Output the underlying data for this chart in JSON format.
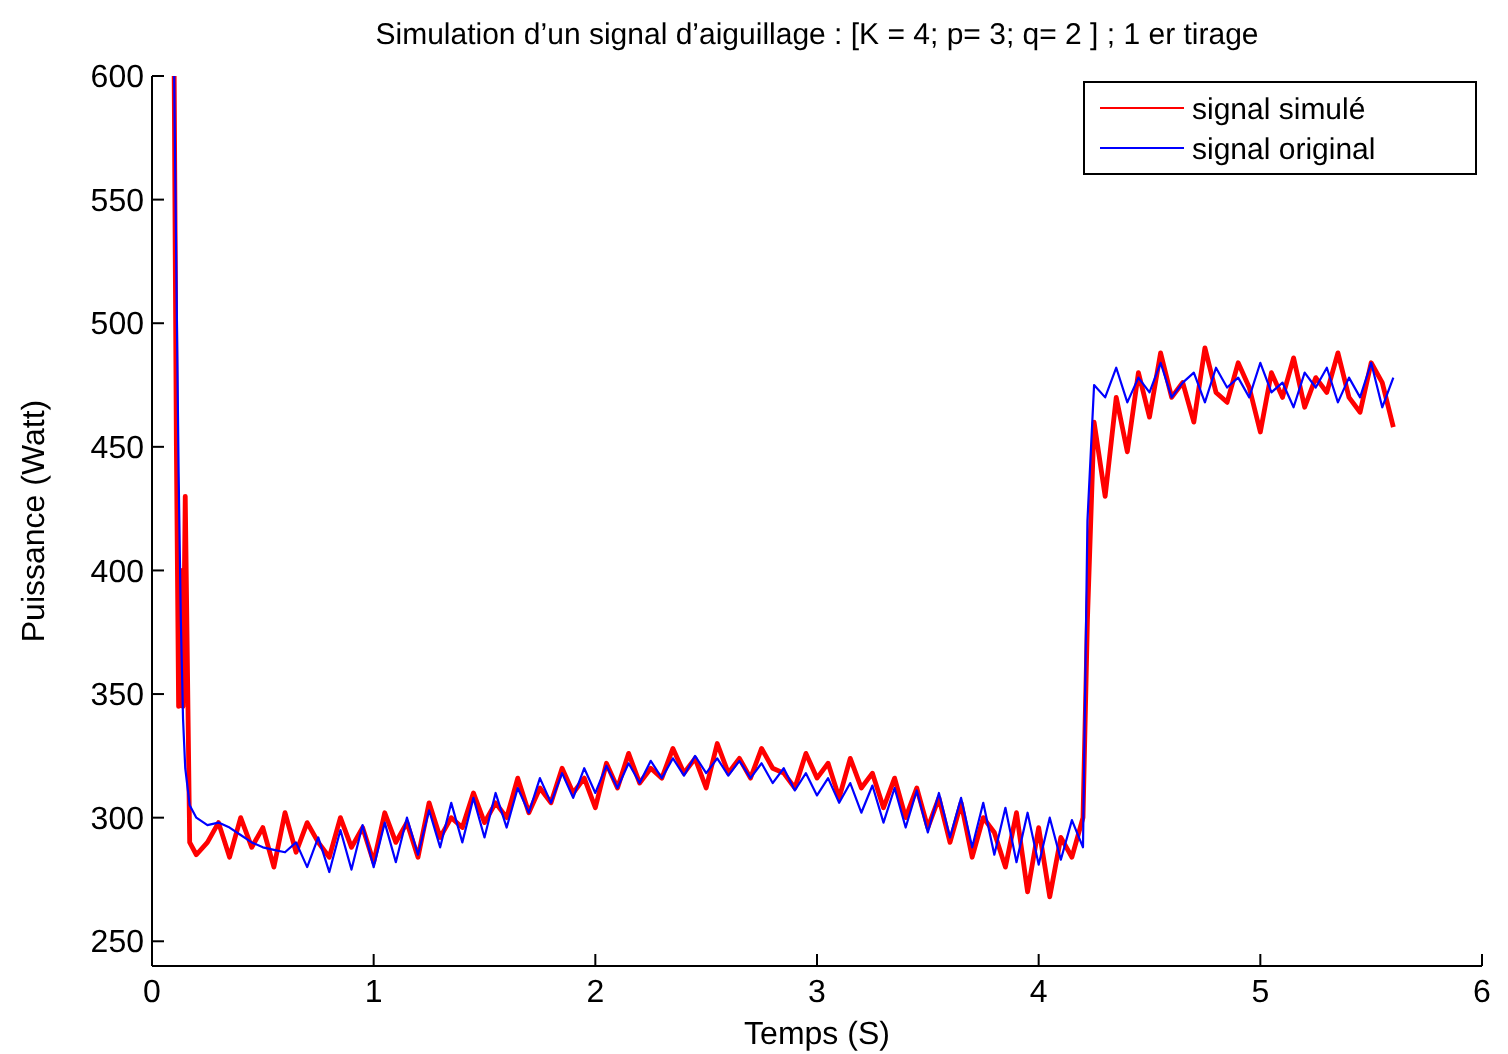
{
  "chart_data": {
    "type": "line",
    "title": "Simulation d’un signal d’aiguillage : [K = 4; p= 3;  q= 2 ] ;  1 er tirage",
    "xlabel": "Temps (S)",
    "ylabel": "Puissance (Watt)",
    "xlim": [
      0,
      6
    ],
    "xticks": [
      0,
      1,
      2,
      3,
      4,
      5,
      6
    ],
    "ylim": [
      240,
      600
    ],
    "yticks": [
      250,
      300,
      350,
      400,
      450,
      500,
      550,
      600
    ],
    "grid": false,
    "legend": "top right",
    "line_style": "solid",
    "marker": "none",
    "x": [
      0.1,
      0.11,
      0.12,
      0.13,
      0.14,
      0.15,
      0.17,
      0.2,
      0.25,
      0.3,
      0.35,
      0.4,
      0.45,
      0.5,
      0.55,
      0.6,
      0.65,
      0.7,
      0.75,
      0.8,
      0.85,
      0.9,
      0.95,
      1,
      1.05,
      1.1,
      1.15,
      1.2,
      1.25,
      1.3,
      1.35,
      1.4,
      1.45,
      1.5,
      1.55,
      1.6,
      1.65,
      1.7,
      1.75,
      1.8,
      1.85,
      1.9,
      1.95,
      2,
      2.05,
      2.1,
      2.15,
      2.2,
      2.25,
      2.3,
      2.35,
      2.4,
      2.45,
      2.5,
      2.55,
      2.6,
      2.65,
      2.7,
      2.75,
      2.8,
      2.85,
      2.9,
      2.95,
      3,
      3.05,
      3.1,
      3.15,
      3.2,
      3.25,
      3.3,
      3.35,
      3.4,
      3.45,
      3.5,
      3.55,
      3.6,
      3.65,
      3.7,
      3.75,
      3.8,
      3.85,
      3.9,
      3.95,
      4,
      4.05,
      4.1,
      4.15,
      4.2,
      4.22,
      4.25,
      4.3,
      4.35,
      4.4,
      4.45,
      4.5,
      4.55,
      4.6,
      4.65,
      4.7,
      4.75,
      4.8,
      4.85,
      4.9,
      4.95,
      5,
      5.05,
      5.1,
      5.15,
      5.2,
      5.25,
      5.3,
      5.35,
      5.4,
      5.45,
      5.5,
      5.55,
      5.6
    ],
    "series": [
      {
        "name": "signal simulé",
        "color": "#ff0000",
        "values": [
          600,
          450,
          345,
          400,
          345,
          430,
          290,
          285,
          290,
          298,
          284,
          300,
          288,
          296,
          280,
          302,
          286,
          298,
          290,
          284,
          300,
          288,
          296,
          282,
          302,
          290,
          298,
          284,
          306,
          292,
          300,
          296,
          310,
          298,
          306,
          300,
          316,
          302,
          312,
          306,
          320,
          310,
          316,
          304,
          322,
          312,
          326,
          314,
          320,
          316,
          328,
          318,
          324,
          312,
          330,
          318,
          324,
          316,
          328,
          320,
          318,
          312,
          326,
          316,
          322,
          308,
          324,
          312,
          318,
          304,
          316,
          300,
          312,
          296,
          308,
          290,
          306,
          284,
          300,
          294,
          280,
          302,
          270,
          296,
          268,
          292,
          284,
          300,
          380,
          460,
          430,
          470,
          448,
          480,
          462,
          488,
          470,
          476,
          460,
          490,
          472,
          468,
          484,
          474,
          456,
          480,
          470,
          486,
          466,
          478,
          472,
          488,
          470,
          464,
          484,
          476,
          458
        ]
      },
      {
        "name": "signal original",
        "color": "#0000ff",
        "values": [
          600,
          520,
          440,
          380,
          340,
          320,
          305,
          300,
          297,
          298,
          296,
          293,
          290,
          288,
          287,
          286,
          290,
          280,
          292,
          278,
          295,
          279,
          297,
          280,
          298,
          282,
          300,
          285,
          303,
          288,
          306,
          290,
          308,
          292,
          310,
          296,
          312,
          302,
          316,
          306,
          318,
          308,
          320,
          310,
          321,
          312,
          322,
          314,
          323,
          316,
          324,
          317,
          325,
          318,
          324,
          317,
          323,
          316,
          322,
          314,
          320,
          311,
          318,
          309,
          316,
          306,
          314,
          302,
          313,
          298,
          312,
          296,
          311,
          294,
          310,
          292,
          308,
          288,
          306,
          285,
          304,
          282,
          302,
          281,
          300,
          283,
          299,
          288,
          420,
          475,
          470,
          482,
          468,
          478,
          472,
          484,
          470,
          476,
          480,
          468,
          482,
          474,
          478,
          470,
          484,
          472,
          476,
          466,
          480,
          474,
          482,
          468,
          478,
          470,
          484,
          466,
          478
        ]
      }
    ]
  }
}
